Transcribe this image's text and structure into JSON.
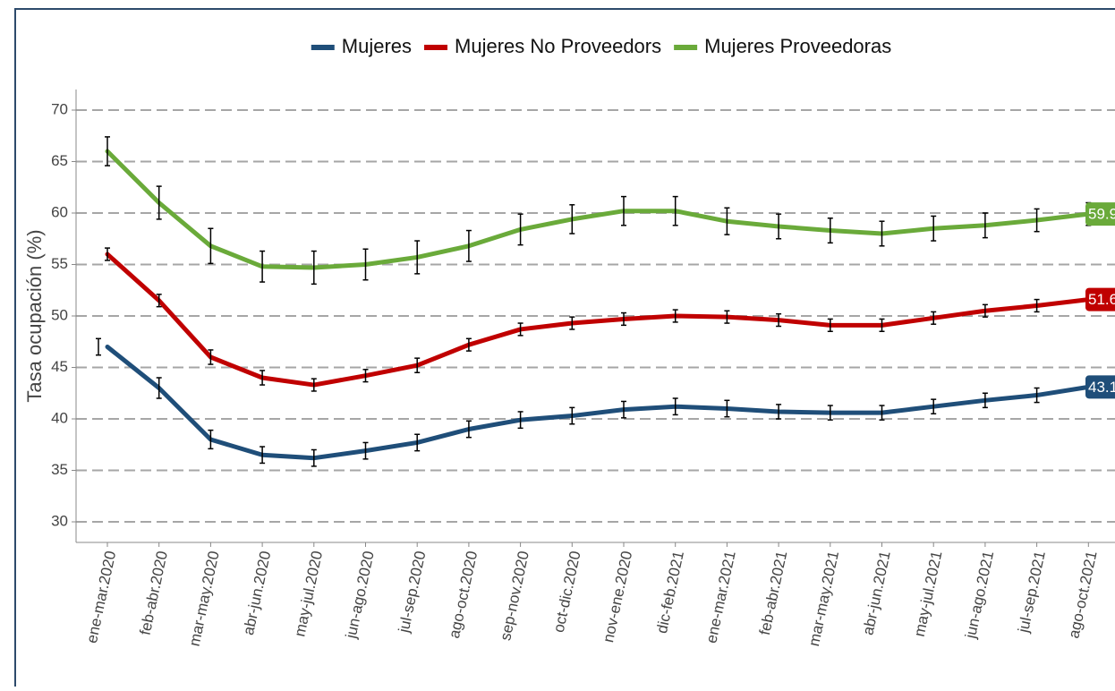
{
  "chart_data": {
    "type": "line",
    "y_label": "Tasa ocupación (%)",
    "categories": [
      "ene-mar.2020",
      "feb-abr.2020",
      "mar-may.2020",
      "abr-jun.2020",
      "may-jul.2020",
      "jun-ago.2020",
      "jul-sep.2020",
      "ago-oct.2020",
      "sep-nov.2020",
      "oct-dic.2020",
      "nov-ene.2020",
      "dic-feb.2021",
      "ene-mar.2021",
      "feb-abr.2021",
      "mar-may.2021",
      "abr-jun.2021",
      "may-jul.2021",
      "jun-ago.2021",
      "jul-sep.2021",
      "ago-oct.2021"
    ],
    "series": [
      {
        "name": "Mujeres",
        "color": "#1f4e79",
        "values": [
          47.0,
          43.0,
          38.0,
          36.5,
          36.2,
          36.9,
          37.7,
          39.0,
          39.9,
          40.3,
          40.9,
          41.2,
          41.0,
          40.7,
          40.6,
          40.6,
          41.2,
          41.8,
          42.3,
          43.1
        ],
        "errors": [
          0.8,
          1.0,
          0.9,
          0.8,
          0.8,
          0.8,
          0.8,
          0.8,
          0.8,
          0.8,
          0.8,
          0.8,
          0.8,
          0.7,
          0.7,
          0.7,
          0.7,
          0.7,
          0.7,
          0.7
        ]
      },
      {
        "name": "Mujeres No Proveedors",
        "color": "#c00000",
        "values": [
          56.0,
          51.5,
          46.0,
          44.0,
          43.3,
          44.2,
          45.2,
          47.2,
          48.7,
          49.3,
          49.7,
          50.0,
          49.9,
          49.6,
          49.1,
          49.1,
          49.8,
          50.5,
          51.0,
          51.6
        ],
        "errors": [
          0.6,
          0.6,
          0.7,
          0.7,
          0.6,
          0.6,
          0.7,
          0.6,
          0.6,
          0.6,
          0.6,
          0.6,
          0.6,
          0.6,
          0.6,
          0.6,
          0.6,
          0.6,
          0.6,
          0.6
        ]
      },
      {
        "name": "Mujeres Proveedoras",
        "color": "#6aaa3a",
        "values": [
          66.0,
          61.0,
          56.8,
          54.8,
          54.7,
          55.0,
          55.7,
          56.8,
          58.4,
          59.4,
          60.2,
          60.2,
          59.2,
          58.7,
          58.3,
          58.0,
          58.5,
          58.8,
          59.3,
          59.9
        ],
        "errors": [
          1.4,
          1.6,
          1.7,
          1.5,
          1.6,
          1.5,
          1.6,
          1.5,
          1.5,
          1.4,
          1.4,
          1.4,
          1.3,
          1.2,
          1.2,
          1.2,
          1.2,
          1.2,
          1.1,
          1.1
        ]
      }
    ],
    "ylim": [
      28,
      72
    ],
    "yticks": [
      30,
      35,
      40,
      45,
      50,
      55,
      60,
      65,
      70
    ],
    "grid": true,
    "legend": "top"
  }
}
